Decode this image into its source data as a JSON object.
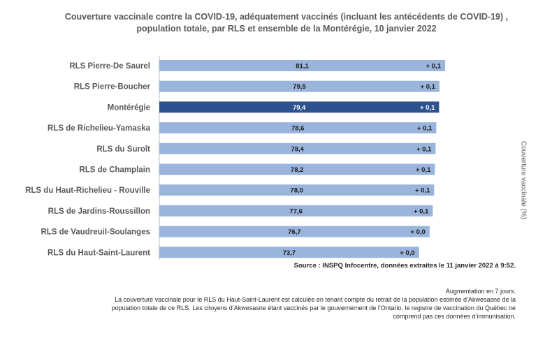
{
  "title": "Couverture vaccinale contre la COVID-19, adéquatement vaccinés (incluant les antécédents de COVID-19) , population totale, par RLS et ensemble de la Montérégie, 10 janvier 2022",
  "axis_title": "Couverture vaccinale (%)",
  "source": "Source : INSPQ Infocentre, données extraites le 11 janvier 2022 à  9:52.",
  "augmentation_note": "Augmentation en 7 jours.",
  "footnote": "La couverture vaccinale pour le RLS du Haut-Saint-Laurent est calculée en tenant compte du retrait de la population estimée d’Akwesasne de la population totale de ce RLS. Les citoyens d’Akwesasne étant vaccinés par le gouvernement de l’Ontario, le registre de vaccination du Québec ne comprend pas ces données d’immunisation.",
  "colors": {
    "bar": "#9ab4dc",
    "highlight_bar": "#2c5390",
    "text": "#595959"
  },
  "chart_data": {
    "type": "bar",
    "orientation": "horizontal",
    "title": "Couverture vaccinale contre la COVID-19, adéquatement vaccinés (incluant les antécédents de COVID-19) , population totale, par RLS et ensemble de la Montérégie, 10 janvier 2022",
    "ylabel": "Couverture vaccinale (%)",
    "categories": [
      "RLS Pierre-De Saurel",
      "RLS Pierre-Boucher",
      "Montérégie",
      "RLS de Richelieu-Yamaska",
      "RLS du Suroît",
      "RLS de Champlain",
      "RLS du Haut-Richelieu - Rouville",
      "RLS de Jardins-Roussillon",
      "RLS de Vaudreuil-Soulanges",
      "RLS du Haut-Saint-Laurent"
    ],
    "values": [
      81.1,
      79.5,
      79.4,
      78.6,
      78.4,
      78.2,
      78.0,
      77.6,
      76.7,
      73.7
    ],
    "value_labels": [
      "81,1",
      "79,5",
      "79,4",
      "78,6",
      "78,4",
      "78,2",
      "78,0",
      "77,6",
      "76,7",
      "73,7"
    ],
    "change_labels": [
      "+ 0,1",
      "+ 0,1",
      "+ 0,1",
      "+ 0,1",
      "+ 0,1",
      "+ 0,1",
      "+ 0,1",
      "+ 0,1",
      "+ 0,0",
      "+ 0,0"
    ],
    "highlight": "Montérégie",
    "grid": false,
    "legend": "none"
  }
}
